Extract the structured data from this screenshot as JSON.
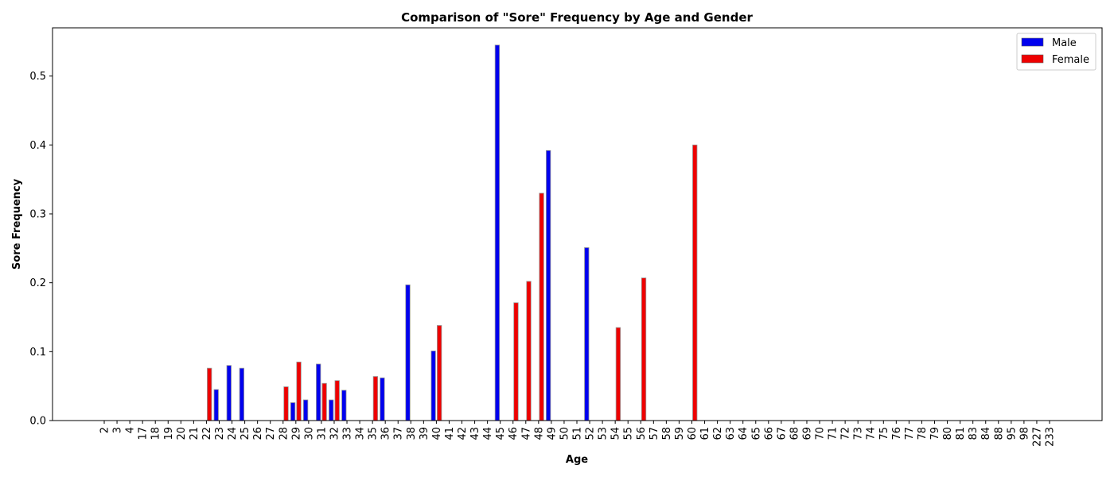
{
  "chart_data": {
    "type": "bar",
    "title": "Comparison of \"Sore\" Frequency by Age and Gender",
    "xlabel": "Age",
    "ylabel": "Sore Frequency",
    "ylim": [
      0,
      0.57
    ],
    "yticks": [
      "0.0",
      "0.1",
      "0.2",
      "0.3",
      "0.4",
      "0.5"
    ],
    "grid": false,
    "legend_position": "top-right",
    "categories": [
      "2",
      "3",
      "4",
      "17",
      "18",
      "19",
      "20",
      "21",
      "22",
      "23",
      "24",
      "25",
      "26",
      "27",
      "28",
      "29",
      "30",
      "31",
      "32",
      "33",
      "34",
      "35",
      "36",
      "37",
      "38",
      "39",
      "40",
      "41",
      "42",
      "43",
      "44",
      "45",
      "46",
      "47",
      "48",
      "49",
      "50",
      "51",
      "52",
      "53",
      "54",
      "55",
      "56",
      "57",
      "58",
      "59",
      "60",
      "61",
      "62",
      "63",
      "64",
      "65",
      "66",
      "67",
      "68",
      "69",
      "70",
      "71",
      "72",
      "73",
      "74",
      "75",
      "76",
      "77",
      "78",
      "79",
      "80",
      "81",
      "83",
      "84",
      "88",
      "95",
      "98",
      "227",
      "233"
    ],
    "series": [
      {
        "name": "Male",
        "color": "#0000ee",
        "values": [
          0,
          0,
          0,
          0,
          0,
          0,
          0,
          0,
          0,
          0.045,
          0.08,
          0.076,
          0,
          0,
          0,
          0.026,
          0.03,
          0.082,
          0.03,
          0.044,
          0,
          0,
          0.062,
          0,
          0.197,
          0,
          0.101,
          0,
          0,
          0,
          0,
          0.545,
          0,
          0,
          0,
          0.392,
          0,
          0,
          0.251,
          0,
          0,
          0,
          0,
          0,
          0,
          0,
          0,
          0,
          0,
          0,
          0,
          0,
          0,
          0,
          0,
          0,
          0,
          0,
          0,
          0,
          0,
          0,
          0,
          0,
          0,
          0,
          0,
          0,
          0,
          0,
          0,
          0,
          0,
          0,
          0
        ]
      },
      {
        "name": "Female",
        "color": "#ee0000",
        "values": [
          0,
          0,
          0,
          0,
          0,
          0,
          0,
          0,
          0.076,
          0,
          0,
          0,
          0,
          0,
          0.049,
          0.085,
          0,
          0.054,
          0.058,
          0,
          0,
          0.064,
          0,
          0,
          0,
          0,
          0.138,
          0,
          0,
          0,
          0,
          0,
          0.171,
          0.202,
          0.33,
          0,
          0,
          0,
          0,
          0,
          0.135,
          0,
          0.207,
          0,
          0,
          0,
          0.4,
          0,
          0,
          0,
          0,
          0,
          0,
          0,
          0,
          0,
          0,
          0,
          0,
          0,
          0,
          0,
          0,
          0,
          0,
          0,
          0,
          0,
          0,
          0,
          0,
          0,
          0,
          0,
          0
        ]
      }
    ]
  }
}
